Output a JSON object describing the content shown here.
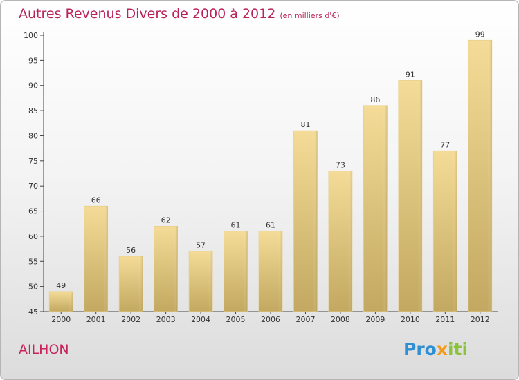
{
  "title": "Autres Revenus Divers de 2000 à 2012",
  "subtitle": "(en milliers d'€)",
  "commune": "AILHON",
  "logo": {
    "parts": [
      "Pro",
      "x",
      "iti"
    ],
    "colors": [
      "#2e8fd4",
      "#f39a1b",
      "#8bc33e"
    ]
  },
  "colors": {
    "bar_light": "#f4dc98",
    "bar_dark": "#c2a860",
    "title": "#b8245a"
  },
  "chart_data": {
    "type": "bar",
    "title": "Autres Revenus Divers de 2000 à 2012",
    "subtitle": "(en milliers d'€)",
    "categories": [
      "2000",
      "2001",
      "2002",
      "2003",
      "2004",
      "2005",
      "2006",
      "2007",
      "2008",
      "2009",
      "2010",
      "2011",
      "2012"
    ],
    "values": [
      49,
      66,
      56,
      62,
      57,
      61,
      61,
      81,
      73,
      86,
      91,
      77,
      99
    ],
    "ylim": [
      45,
      100
    ],
    "yticks": [
      45,
      50,
      55,
      60,
      65,
      70,
      75,
      80,
      85,
      90,
      95,
      100
    ],
    "grid": false,
    "legend": "none"
  }
}
